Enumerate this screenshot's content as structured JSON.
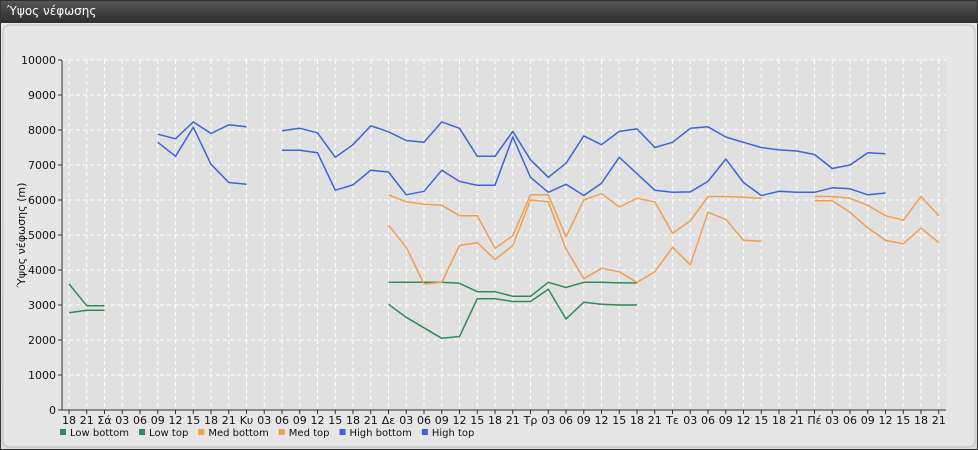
{
  "window": {
    "title": "Ύψος νέφωσης"
  },
  "chart_data": {
    "type": "line",
    "title": "",
    "ylabel": "Ύψος νέφωσης (m)",
    "ylim": [
      0,
      10000
    ],
    "yticks": [
      0,
      1000,
      2000,
      3000,
      4000,
      5000,
      6000,
      7000,
      8000,
      9000,
      10000
    ],
    "grid": true,
    "legend_position": "bottom-left",
    "x_tick_labels": [
      "18",
      "21",
      "Σά",
      "03",
      "06",
      "09",
      "12",
      "15",
      "18",
      "21",
      "Κυ",
      "03",
      "06",
      "09",
      "12",
      "15",
      "18",
      "21",
      "Δε",
      "03",
      "06",
      "09",
      "12",
      "15",
      "18",
      "21",
      "Τρ",
      "03",
      "06",
      "09",
      "12",
      "15",
      "18",
      "21",
      "Τε",
      "03",
      "06",
      "09",
      "12",
      "15",
      "18",
      "21",
      "Πέ",
      "03",
      "06",
      "09",
      "12",
      "15",
      "18",
      "21"
    ],
    "series": [
      {
        "name": "Low bottom",
        "color": "#2e8b57",
        "values": [
          2780,
          2850,
          2850,
          null,
          null,
          null,
          null,
          null,
          null,
          null,
          null,
          null,
          null,
          null,
          null,
          null,
          null,
          null,
          3020,
          2650,
          2350,
          2050,
          2100,
          3180,
          3180,
          3100,
          3100,
          3450,
          2600,
          3080,
          3020,
          3000,
          3000,
          null,
          null,
          null,
          null,
          null,
          null,
          null,
          null,
          null,
          null,
          null,
          null,
          null,
          null,
          null,
          null,
          null
        ]
      },
      {
        "name": "Low top",
        "color": "#2e8b57",
        "values": [
          3600,
          2980,
          2980,
          null,
          null,
          null,
          null,
          null,
          null,
          null,
          null,
          null,
          null,
          null,
          null,
          null,
          null,
          null,
          3650,
          3650,
          3650,
          3650,
          3620,
          3380,
          3380,
          3250,
          3250,
          3650,
          3500,
          3650,
          3650,
          3630,
          3630,
          null,
          null,
          null,
          null,
          null,
          null,
          null,
          null,
          null,
          null,
          null,
          null,
          null,
          null,
          null,
          null,
          null
        ]
      },
      {
        "name": "Med bottom",
        "color": "#f0a050",
        "values": [
          null,
          null,
          null,
          null,
          null,
          null,
          null,
          null,
          null,
          null,
          null,
          null,
          null,
          null,
          null,
          null,
          null,
          null,
          5280,
          4650,
          3600,
          3650,
          4700,
          4780,
          4300,
          4700,
          6000,
          5950,
          4600,
          3750,
          4050,
          3950,
          3650,
          3950,
          4650,
          4150,
          5650,
          5450,
          4850,
          4820,
          null,
          null,
          5980,
          5980,
          5650,
          5200,
          4850,
          4750,
          5200,
          4780
        ]
      },
      {
        "name": "Med top",
        "color": "#f0a050",
        "values": [
          null,
          null,
          null,
          null,
          null,
          null,
          null,
          null,
          null,
          null,
          null,
          null,
          null,
          null,
          null,
          null,
          null,
          null,
          6150,
          5950,
          5880,
          5850,
          5550,
          5550,
          4620,
          4980,
          6150,
          6150,
          4950,
          6000,
          6180,
          5800,
          6050,
          5950,
          5050,
          5400,
          6100,
          6100,
          6080,
          6050,
          null,
          null,
          6100,
          6100,
          6050,
          5850,
          5550,
          5420,
          6100,
          5550
        ]
      },
      {
        "name": "High bottom",
        "color": "#3c64d8",
        "values": [
          null,
          null,
          null,
          null,
          null,
          7650,
          7250,
          8080,
          7020,
          6500,
          6450,
          null,
          7420,
          7420,
          7350,
          6280,
          6430,
          6850,
          6800,
          6150,
          6250,
          6850,
          6530,
          6420,
          6420,
          7800,
          6650,
          6220,
          6450,
          6130,
          6480,
          7220,
          6750,
          6280,
          6220,
          6230,
          6530,
          7170,
          6500,
          6130,
          6250,
          6220,
          6220,
          6350,
          6320,
          6150,
          6200,
          null,
          null,
          null
        ]
      },
      {
        "name": "High top",
        "color": "#3c64d8",
        "values": [
          null,
          null,
          null,
          null,
          null,
          7880,
          7750,
          8230,
          7900,
          8150,
          8090,
          null,
          7980,
          8050,
          7920,
          7220,
          7580,
          8120,
          7950,
          7700,
          7650,
          8230,
          8050,
          7250,
          7250,
          7960,
          7150,
          6650,
          7050,
          7830,
          7580,
          7960,
          8030,
          7500,
          7650,
          8050,
          8090,
          7800,
          7650,
          7500,
          7430,
          7400,
          7300,
          6900,
          7000,
          7350,
          7320,
          null,
          null,
          null
        ]
      }
    ]
  }
}
